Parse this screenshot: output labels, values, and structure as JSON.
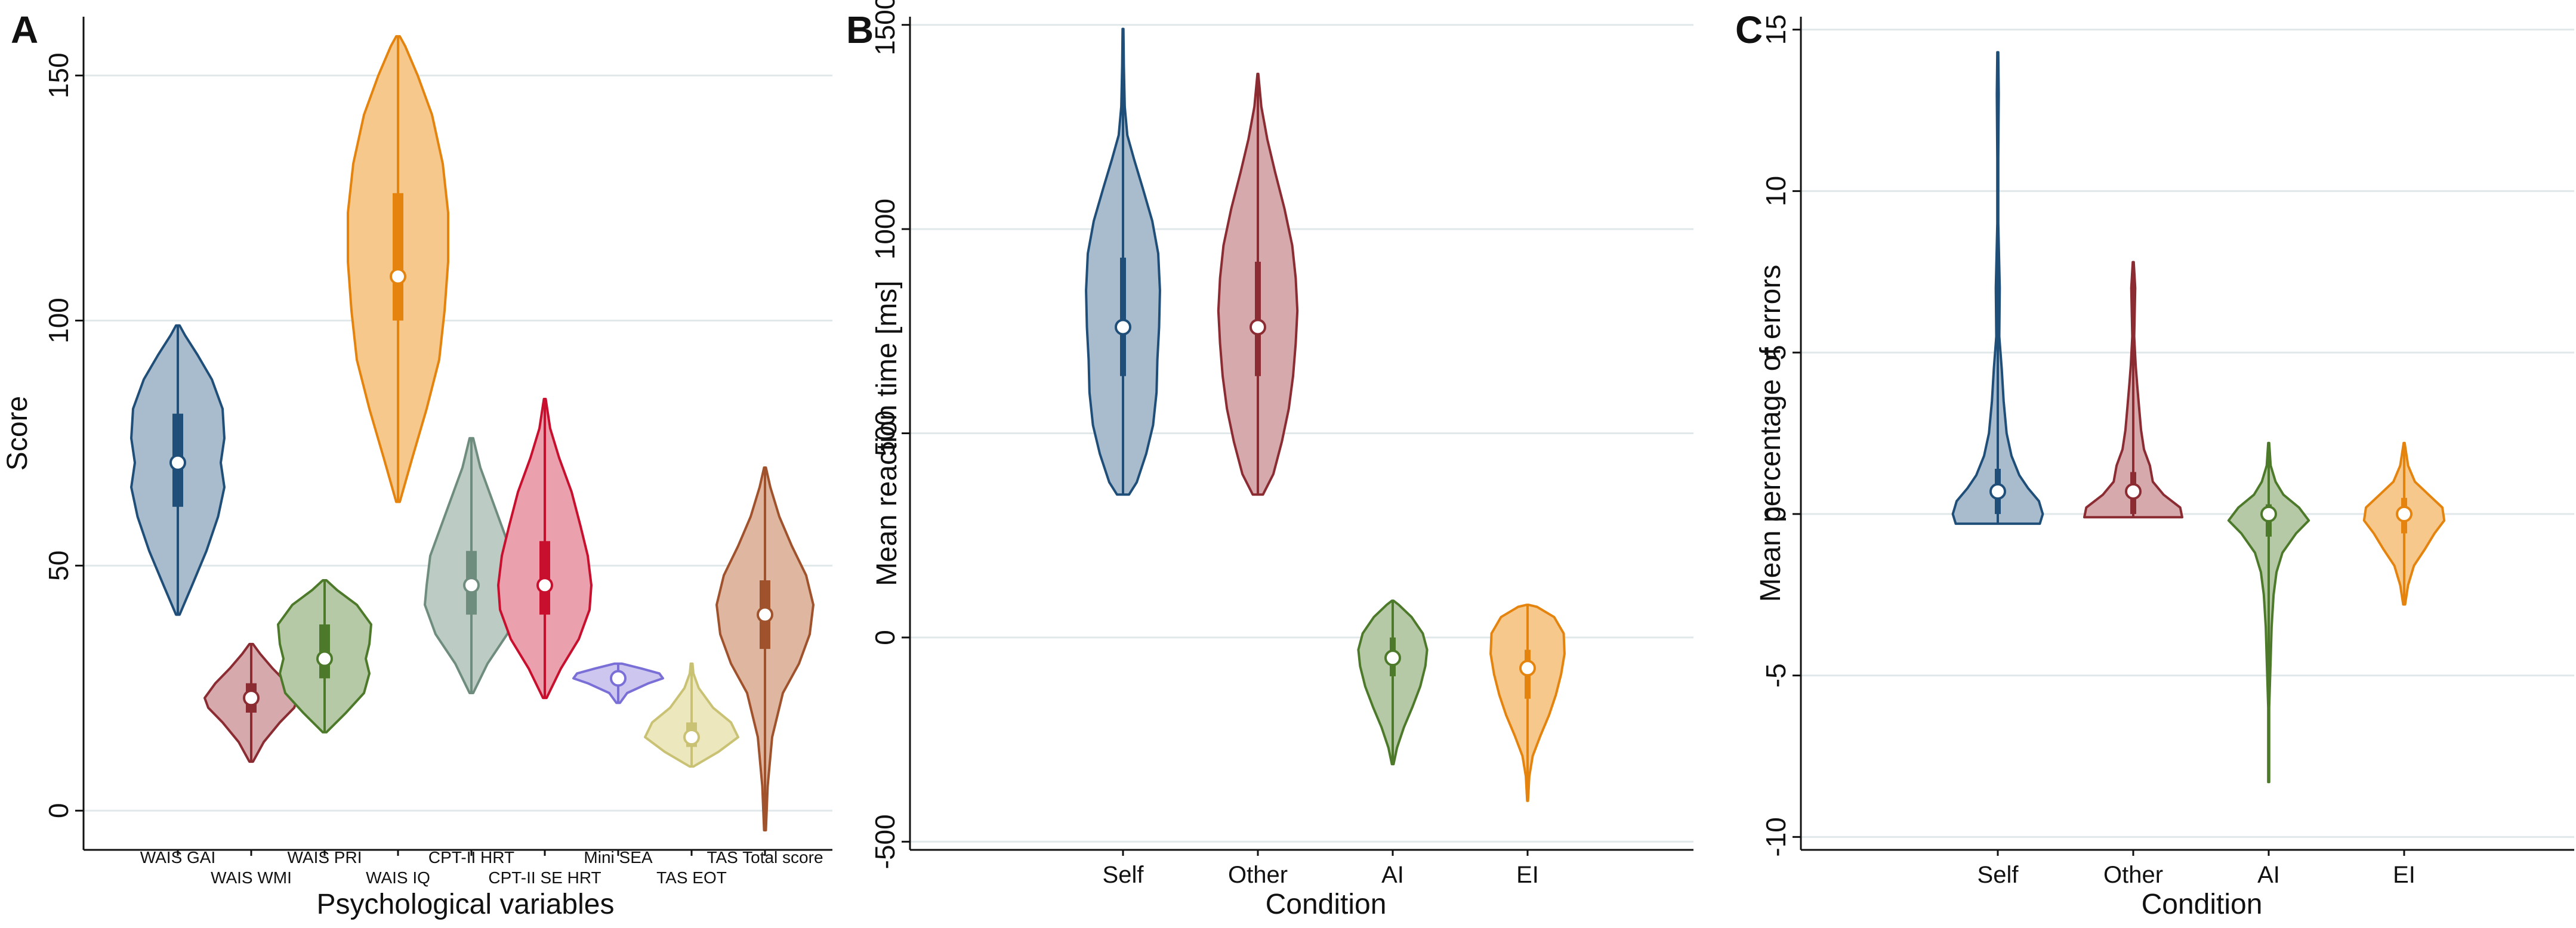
{
  "chart_data": [
    {
      "panel": "A",
      "type": "violin",
      "ylabel": "Score",
      "xlabel": "Psychological variables",
      "ylim": [
        -8,
        162
      ],
      "yticks": [
        0,
        50,
        100,
        150
      ],
      "grid": true,
      "categories": [
        {
          "name": "WAIS GAI",
          "row": "upper",
          "color": "#1f4e79",
          "fill": "#a9bccd",
          "min": 40,
          "max": 99,
          "q1": 62,
          "median": 71,
          "q3": 81,
          "shape": [
            [
              40,
              0.02
            ],
            [
              46,
              0.16
            ],
            [
              53,
              0.32
            ],
            [
              60,
              0.45
            ],
            [
              66,
              0.52
            ],
            [
              71,
              0.48
            ],
            [
              76,
              0.52
            ],
            [
              82,
              0.5
            ],
            [
              88,
              0.38
            ],
            [
              93,
              0.22
            ],
            [
              97,
              0.08
            ],
            [
              99,
              0.02
            ]
          ]
        },
        {
          "name": "WAIS WMI",
          "row": "lower",
          "color": "#8b2c33",
          "fill": "#d6a9ad",
          "min": 10,
          "max": 34,
          "q1": 20,
          "median": 23,
          "q3": 26,
          "shape": [
            [
              10,
              0.02
            ],
            [
              14,
              0.14
            ],
            [
              18,
              0.32
            ],
            [
              21,
              0.48
            ],
            [
              23,
              0.52
            ],
            [
              26,
              0.4
            ],
            [
              29,
              0.24
            ],
            [
              32,
              0.1
            ],
            [
              34,
              0.02
            ]
          ]
        },
        {
          "name": "WAIS PRI",
          "row": "upper",
          "color": "#4d7a2a",
          "fill": "#b6c9a6",
          "min": 16,
          "max": 47,
          "q1": 27,
          "median": 31,
          "q3": 38,
          "shape": [
            [
              16,
              0.02
            ],
            [
              20,
              0.24
            ],
            [
              24,
              0.44
            ],
            [
              28,
              0.5
            ],
            [
              31,
              0.46
            ],
            [
              34,
              0.5
            ],
            [
              38,
              0.52
            ],
            [
              42,
              0.36
            ],
            [
              45,
              0.14
            ],
            [
              47,
              0.02
            ]
          ]
        },
        {
          "name": "WAIS IQ",
          "row": "lower",
          "color": "#e4840f",
          "fill": "#f6c88c",
          "min": 63,
          "max": 158,
          "q1": 100,
          "median": 109,
          "q3": 126,
          "shape": [
            [
              63,
              0.02
            ],
            [
              72,
              0.16
            ],
            [
              82,
              0.32
            ],
            [
              92,
              0.46
            ],
            [
              102,
              0.52
            ],
            [
              112,
              0.56
            ],
            [
              122,
              0.56
            ],
            [
              132,
              0.5
            ],
            [
              142,
              0.38
            ],
            [
              150,
              0.22
            ],
            [
              156,
              0.08
            ],
            [
              158,
              0.02
            ]
          ]
        },
        {
          "name": "CPT-II HRT",
          "row": "upper",
          "color": "#6f8d7f",
          "fill": "#bccbc3",
          "min": 24,
          "max": 76,
          "q1": 40,
          "median": 46,
          "q3": 53,
          "shape": [
            [
              24,
              0.02
            ],
            [
              30,
              0.18
            ],
            [
              36,
              0.4
            ],
            [
              42,
              0.52
            ],
            [
              46,
              0.5
            ],
            [
              52,
              0.46
            ],
            [
              58,
              0.34
            ],
            [
              64,
              0.22
            ],
            [
              70,
              0.1
            ],
            [
              76,
              0.02
            ]
          ]
        },
        {
          "name": "CPT-II SE HRT",
          "row": "lower",
          "color": "#c8102e",
          "fill": "#eaa0ad",
          "min": 23,
          "max": 84,
          "q1": 40,
          "median": 46,
          "q3": 55,
          "shape": [
            [
              23,
              0.02
            ],
            [
              29,
              0.18
            ],
            [
              35,
              0.38
            ],
            [
              41,
              0.5
            ],
            [
              46,
              0.52
            ],
            [
              52,
              0.48
            ],
            [
              58,
              0.4
            ],
            [
              65,
              0.3
            ],
            [
              72,
              0.16
            ],
            [
              78,
              0.06
            ],
            [
              84,
              0.01
            ]
          ]
        },
        {
          "name": "Mini SEA",
          "row": "upper",
          "color": "#7a6fd6",
          "fill": "#cdc7f0",
          "min": 22,
          "max": 30,
          "q1": 26,
          "median": 27,
          "q3": 28,
          "shape": [
            [
              22,
              0.02
            ],
            [
              24,
              0.1
            ],
            [
              26,
              0.34
            ],
            [
              27,
              0.5
            ],
            [
              28,
              0.46
            ],
            [
              29,
              0.26
            ],
            [
              30,
              0.04
            ]
          ]
        },
        {
          "name": "TAS EOT",
          "row": "lower",
          "color": "#c9c173",
          "fill": "#ece7bd",
          "min": 9,
          "max": 30,
          "q1": 13,
          "median": 15,
          "q3": 18,
          "shape": [
            [
              9,
              0.02
            ],
            [
              12,
              0.3
            ],
            [
              15,
              0.52
            ],
            [
              18,
              0.44
            ],
            [
              21,
              0.24
            ],
            [
              25,
              0.08
            ],
            [
              28,
              0.02
            ],
            [
              30,
              0.01
            ]
          ]
        },
        {
          "name": "TAS Total score",
          "row": "upper",
          "color": "#a0522d",
          "fill": "#dfb7a0",
          "min": -4,
          "max": 70,
          "q1": 33,
          "median": 40,
          "q3": 47,
          "shape": [
            [
              -4,
              0.01
            ],
            [
              5,
              0.03
            ],
            [
              15,
              0.08
            ],
            [
              24,
              0.2
            ],
            [
              30,
              0.38
            ],
            [
              36,
              0.5
            ],
            [
              42,
              0.54
            ],
            [
              48,
              0.46
            ],
            [
              54,
              0.3
            ],
            [
              60,
              0.16
            ],
            [
              66,
              0.06
            ],
            [
              70,
              0.01
            ]
          ]
        }
      ]
    },
    {
      "panel": "B",
      "type": "violin",
      "ylabel": "Mean reaction time [ms]",
      "xlabel": "Condition",
      "ylim": [
        -520,
        1520
      ],
      "yticks": [
        -500,
        0,
        500,
        1000,
        1500
      ],
      "grid": true,
      "categories": [
        {
          "name": "Self",
          "color": "#1f4e79",
          "fill": "#a9bccd",
          "min": 350,
          "max": 1490,
          "q1": 640,
          "median": 760,
          "q3": 930,
          "shape": [
            [
              350,
              0.14
            ],
            [
              380,
              0.32
            ],
            [
              450,
              0.54
            ],
            [
              520,
              0.7
            ],
            [
              600,
              0.78
            ],
            [
              680,
              0.8
            ],
            [
              760,
              0.84
            ],
            [
              850,
              0.86
            ],
            [
              940,
              0.82
            ],
            [
              1020,
              0.68
            ],
            [
              1100,
              0.46
            ],
            [
              1170,
              0.26
            ],
            [
              1230,
              0.1
            ],
            [
              1300,
              0.04
            ],
            [
              1400,
              0.02
            ],
            [
              1490,
              0.01
            ]
          ]
        },
        {
          "name": "Other",
          "color": "#8b2c33",
          "fill": "#d6a9ad",
          "min": 350,
          "max": 1380,
          "q1": 640,
          "median": 760,
          "q3": 920,
          "shape": [
            [
              350,
              0.12
            ],
            [
              400,
              0.36
            ],
            [
              480,
              0.56
            ],
            [
              560,
              0.72
            ],
            [
              640,
              0.82
            ],
            [
              720,
              0.88
            ],
            [
              800,
              0.92
            ],
            [
              880,
              0.88
            ],
            [
              960,
              0.8
            ],
            [
              1050,
              0.62
            ],
            [
              1140,
              0.4
            ],
            [
              1220,
              0.22
            ],
            [
              1300,
              0.08
            ],
            [
              1380,
              0.01
            ]
          ]
        },
        {
          "name": "AI",
          "color": "#4d7a2a",
          "fill": "#b6c9a6",
          "min": -310,
          "max": 90,
          "q1": -95,
          "median": -50,
          "q3": 0,
          "shape": [
            [
              -310,
              0.02
            ],
            [
              -270,
              0.1
            ],
            [
              -220,
              0.26
            ],
            [
              -170,
              0.46
            ],
            [
              -120,
              0.64
            ],
            [
              -70,
              0.76
            ],
            [
              -30,
              0.8
            ],
            [
              10,
              0.7
            ],
            [
              50,
              0.44
            ],
            [
              80,
              0.14
            ],
            [
              90,
              0.02
            ]
          ]
        },
        {
          "name": "EI",
          "color": "#e4840f",
          "fill": "#f6c88c",
          "min": -400,
          "max": 80,
          "q1": -150,
          "median": -75,
          "q3": -30,
          "shape": [
            [
              -400,
              0.01
            ],
            [
              -340,
              0.04
            ],
            [
              -290,
              0.12
            ],
            [
              -240,
              0.3
            ],
            [
              -190,
              0.5
            ],
            [
              -140,
              0.66
            ],
            [
              -90,
              0.78
            ],
            [
              -40,
              0.86
            ],
            [
              10,
              0.84
            ],
            [
              50,
              0.62
            ],
            [
              75,
              0.22
            ],
            [
              80,
              0.02
            ]
          ]
        }
      ]
    },
    {
      "panel": "C",
      "type": "violin",
      "ylabel": "Mean percentage of errors",
      "xlabel": "Condition",
      "ylim": [
        -10.4,
        15.4
      ],
      "yticks": [
        -10,
        -5,
        0,
        5,
        10,
        15
      ],
      "grid": true,
      "categories": [
        {
          "name": "Self",
          "color": "#1f4e79",
          "fill": "#a9bccd",
          "min": -0.3,
          "max": 14.3,
          "q1": 0,
          "median": 0.7,
          "q3": 1.4,
          "shape": [
            [
              -0.3,
              0.86
            ],
            [
              0,
              0.92
            ],
            [
              0.4,
              0.84
            ],
            [
              0.8,
              0.62
            ],
            [
              1.2,
              0.44
            ],
            [
              1.8,
              0.28
            ],
            [
              2.5,
              0.18
            ],
            [
              3.5,
              0.12
            ],
            [
              4.5,
              0.08
            ],
            [
              5.5,
              0.03
            ],
            [
              7,
              0.04
            ],
            [
              9,
              0.01
            ],
            [
              11,
              0.01
            ],
            [
              13,
              0.02
            ],
            [
              14.3,
              0.01
            ]
          ]
        },
        {
          "name": "Other",
          "color": "#8b2c33",
          "fill": "#d6a9ad",
          "min": -0.1,
          "max": 7.8,
          "q1": 0,
          "median": 0.7,
          "q3": 1.3,
          "shape": [
            [
              -0.1,
              1.0
            ],
            [
              0.2,
              0.96
            ],
            [
              0.6,
              0.62
            ],
            [
              1,
              0.4
            ],
            [
              1.5,
              0.34
            ],
            [
              2,
              0.22
            ],
            [
              2.6,
              0.16
            ],
            [
              3.3,
              0.12
            ],
            [
              4,
              0.08
            ],
            [
              4.6,
              0.05
            ],
            [
              5.5,
              0.02
            ],
            [
              7,
              0.04
            ],
            [
              7.8,
              0.01
            ]
          ]
        },
        {
          "name": "AI",
          "color": "#4d7a2a",
          "fill": "#b6c9a6",
          "min": -8.3,
          "max": 2.2,
          "q1": -0.7,
          "median": 0,
          "q3": 0.3,
          "shape": [
            [
              -8.3,
              0.01
            ],
            [
              -6,
              0.01
            ],
            [
              -4.5,
              0.04
            ],
            [
              -3.5,
              0.06
            ],
            [
              -2.5,
              0.1
            ],
            [
              -1.8,
              0.16
            ],
            [
              -1.2,
              0.28
            ],
            [
              -0.6,
              0.56
            ],
            [
              -0.2,
              0.82
            ],
            [
              0.2,
              0.62
            ],
            [
              0.6,
              0.3
            ],
            [
              1,
              0.14
            ],
            [
              1.5,
              0.04
            ],
            [
              2.2,
              0.01
            ]
          ]
        },
        {
          "name": "EI",
          "color": "#e4840f",
          "fill": "#f6c88c",
          "min": -2.8,
          "max": 2.2,
          "q1": -0.6,
          "median": 0,
          "q3": 0.5,
          "shape": [
            [
              -2.8,
              0.02
            ],
            [
              -2.2,
              0.08
            ],
            [
              -1.6,
              0.2
            ],
            [
              -1.1,
              0.42
            ],
            [
              -0.6,
              0.62
            ],
            [
              -0.2,
              0.82
            ],
            [
              0.2,
              0.78
            ],
            [
              0.6,
              0.5
            ],
            [
              1,
              0.22
            ],
            [
              1.5,
              0.08
            ],
            [
              2.2,
              0.01
            ]
          ]
        }
      ]
    }
  ]
}
